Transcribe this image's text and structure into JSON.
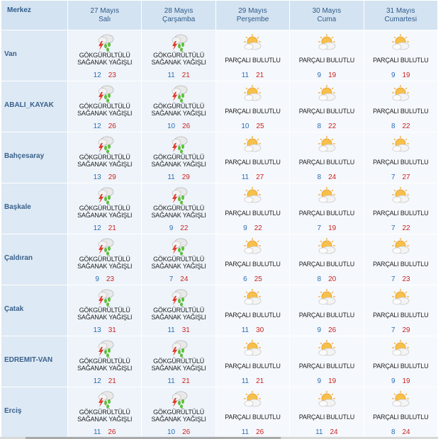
{
  "header": {
    "merkez": "Merkez",
    "days": [
      {
        "date": "27 Mayıs",
        "weekday": "Salı"
      },
      {
        "date": "28 Mayıs",
        "weekday": "Çarşamba"
      },
      {
        "date": "29 Mayıs",
        "weekday": "Perşembe"
      },
      {
        "date": "30 Mayıs",
        "weekday": "Cuma"
      },
      {
        "date": "31 Mayıs",
        "weekday": "Cumartesi"
      }
    ]
  },
  "conditions": {
    "storm_line1": "GÖKGÜRÜLTÜLÜ",
    "storm_line2": "SAĞANAK YAĞIŞLI",
    "cloudy": "PARÇALI BULUTLU"
  },
  "icons": {
    "storm": "thunderstorm-rain-icon",
    "cloudy": "partly-cloudy-icon"
  },
  "colors": {
    "header_bg": "#d4e3f1",
    "min_temp": "#2c6db6",
    "max_temp": "#cc2222"
  },
  "rows": [
    {
      "city": "Van",
      "days": [
        {
          "type": "storm",
          "min": "12",
          "max": "23"
        },
        {
          "type": "storm",
          "min": "11",
          "max": "21"
        },
        {
          "type": "cloudy",
          "min": "11",
          "max": "21"
        },
        {
          "type": "cloudy",
          "min": "9",
          "max": "19"
        },
        {
          "type": "cloudy",
          "min": "9",
          "max": "19"
        }
      ]
    },
    {
      "city": "ABALI_KAYAK",
      "days": [
        {
          "type": "storm",
          "min": "12",
          "max": "26"
        },
        {
          "type": "storm",
          "min": "10",
          "max": "26"
        },
        {
          "type": "cloudy",
          "min": "10",
          "max": "25"
        },
        {
          "type": "cloudy",
          "min": "8",
          "max": "22"
        },
        {
          "type": "cloudy",
          "min": "8",
          "max": "22"
        }
      ]
    },
    {
      "city": "Bahçesaray",
      "days": [
        {
          "type": "storm",
          "min": "13",
          "max": "29"
        },
        {
          "type": "storm",
          "min": "11",
          "max": "29"
        },
        {
          "type": "cloudy",
          "min": "11",
          "max": "27"
        },
        {
          "type": "cloudy",
          "min": "8",
          "max": "24"
        },
        {
          "type": "cloudy",
          "min": "7",
          "max": "27"
        }
      ]
    },
    {
      "city": "Başkale",
      "days": [
        {
          "type": "storm",
          "min": "12",
          "max": "21"
        },
        {
          "type": "storm",
          "min": "9",
          "max": "22"
        },
        {
          "type": "cloudy",
          "min": "9",
          "max": "22"
        },
        {
          "type": "cloudy",
          "min": "7",
          "max": "19"
        },
        {
          "type": "cloudy",
          "min": "7",
          "max": "22"
        }
      ]
    },
    {
      "city": "Çaldıran",
      "days": [
        {
          "type": "storm",
          "min": "9",
          "max": "23"
        },
        {
          "type": "storm",
          "min": "7",
          "max": "24"
        },
        {
          "type": "cloudy",
          "min": "6",
          "max": "25"
        },
        {
          "type": "cloudy",
          "min": "8",
          "max": "20"
        },
        {
          "type": "cloudy",
          "min": "7",
          "max": "23"
        }
      ]
    },
    {
      "city": "Çatak",
      "days": [
        {
          "type": "storm",
          "min": "13",
          "max": "31"
        },
        {
          "type": "storm",
          "min": "11",
          "max": "31"
        },
        {
          "type": "cloudy",
          "min": "11",
          "max": "30"
        },
        {
          "type": "cloudy",
          "min": "9",
          "max": "26"
        },
        {
          "type": "cloudy",
          "min": "7",
          "max": "29"
        }
      ]
    },
    {
      "city": "EDREMIT-VAN",
      "days": [
        {
          "type": "storm",
          "min": "12",
          "max": "21"
        },
        {
          "type": "storm",
          "min": "11",
          "max": "21"
        },
        {
          "type": "cloudy",
          "min": "11",
          "max": "21"
        },
        {
          "type": "cloudy",
          "min": "9",
          "max": "19"
        },
        {
          "type": "cloudy",
          "min": "9",
          "max": "19"
        }
      ]
    },
    {
      "city": "Erciş",
      "days": [
        {
          "type": "storm",
          "min": "11",
          "max": "26"
        },
        {
          "type": "storm",
          "min": "10",
          "max": "26"
        },
        {
          "type": "cloudy",
          "min": "11",
          "max": "26"
        },
        {
          "type": "cloudy",
          "min": "11",
          "max": "24"
        },
        {
          "type": "cloudy",
          "min": "8",
          "max": "24"
        }
      ]
    }
  ]
}
